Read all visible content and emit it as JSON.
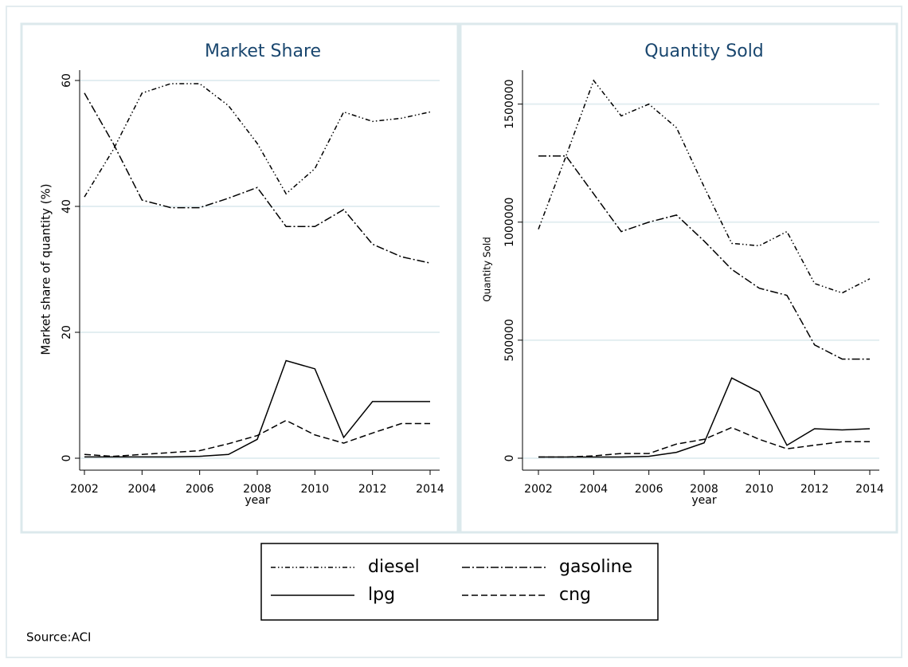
{
  "chart_data": [
    {
      "type": "line",
      "title": "Market Share",
      "xlabel": "year",
      "ylabel": "Market share of quantity (%)",
      "x": [
        2002,
        2003,
        2004,
        2005,
        2006,
        2007,
        2008,
        2009,
        2010,
        2011,
        2012,
        2013,
        2014
      ],
      "xlim": [
        2002,
        2014
      ],
      "xticks": [
        2002,
        2004,
        2006,
        2008,
        2010,
        2012,
        2014
      ],
      "ylim": [
        0,
        60
      ],
      "yticks": [
        0,
        20,
        40,
        60
      ],
      "grid": true,
      "series": [
        {
          "name": "diesel",
          "color": "#000000",
          "dash": "6,3,1.5,3,1.5,3",
          "values": [
            41.5,
            49,
            58,
            59.5,
            59.5,
            56,
            50,
            42,
            46,
            55,
            53.5,
            54,
            55
          ]
        },
        {
          "name": "gasoline",
          "color": "#000000",
          "dash": "10,3,2,3",
          "values": [
            58,
            50,
            41,
            39.8,
            39.8,
            41.3,
            43,
            36.8,
            36.8,
            39.5,
            34,
            32,
            31
          ]
        },
        {
          "name": "lpg",
          "color": "#000000",
          "dash": "none",
          "values": [
            0.2,
            0.2,
            0.2,
            0.2,
            0.3,
            0.6,
            3,
            15.5,
            14.2,
            3.3,
            9,
            9,
            9
          ]
        },
        {
          "name": "cng",
          "color": "#000000",
          "dash": "8,4",
          "values": [
            0.6,
            0.3,
            0.6,
            0.9,
            1.2,
            2.3,
            3.6,
            6,
            3.7,
            2.4,
            4,
            5.5,
            5.5
          ]
        }
      ]
    },
    {
      "type": "line",
      "title": "Quantity Sold",
      "xlabel": "year",
      "ylabel": "Quantity Sold",
      "x": [
        2002,
        2003,
        2004,
        2005,
        2006,
        2007,
        2008,
        2009,
        2010,
        2011,
        2012,
        2013,
        2014
      ],
      "xlim": [
        2002,
        2014
      ],
      "xticks": [
        2002,
        2004,
        2006,
        2008,
        2010,
        2012,
        2014
      ],
      "ylim": [
        0,
        1600000
      ],
      "yticks": [
        0,
        500000,
        1000000,
        1500000
      ],
      "grid": true,
      "series": [
        {
          "color": "#000000",
          "dash": "6,3,1.5,3,1.5,3",
          "values": [
            970000,
            1280000,
            1600000,
            1450000,
            1500000,
            1400000,
            1150000,
            910000,
            900000,
            960000,
            740000,
            700000,
            760000
          ]
        },
        {
          "color": "#000000",
          "dash": "10,3,2,3",
          "values": [
            1280000,
            1280000,
            1120000,
            960000,
            1000000,
            1030000,
            920000,
            800000,
            720000,
            690000,
            480000,
            420000,
            420000
          ]
        },
        {
          "color": "#000000",
          "dash": "none",
          "values": [
            5000,
            5000,
            5000,
            5000,
            8000,
            25000,
            65000,
            340000,
            280000,
            55000,
            125000,
            120000,
            125000
          ]
        },
        {
          "color": "#000000",
          "dash": "8,4",
          "values": [
            5000,
            5000,
            10000,
            20000,
            20000,
            60000,
            80000,
            130000,
            80000,
            40000,
            55000,
            70000,
            70000
          ]
        }
      ]
    }
  ],
  "note": "Source:ACI"
}
